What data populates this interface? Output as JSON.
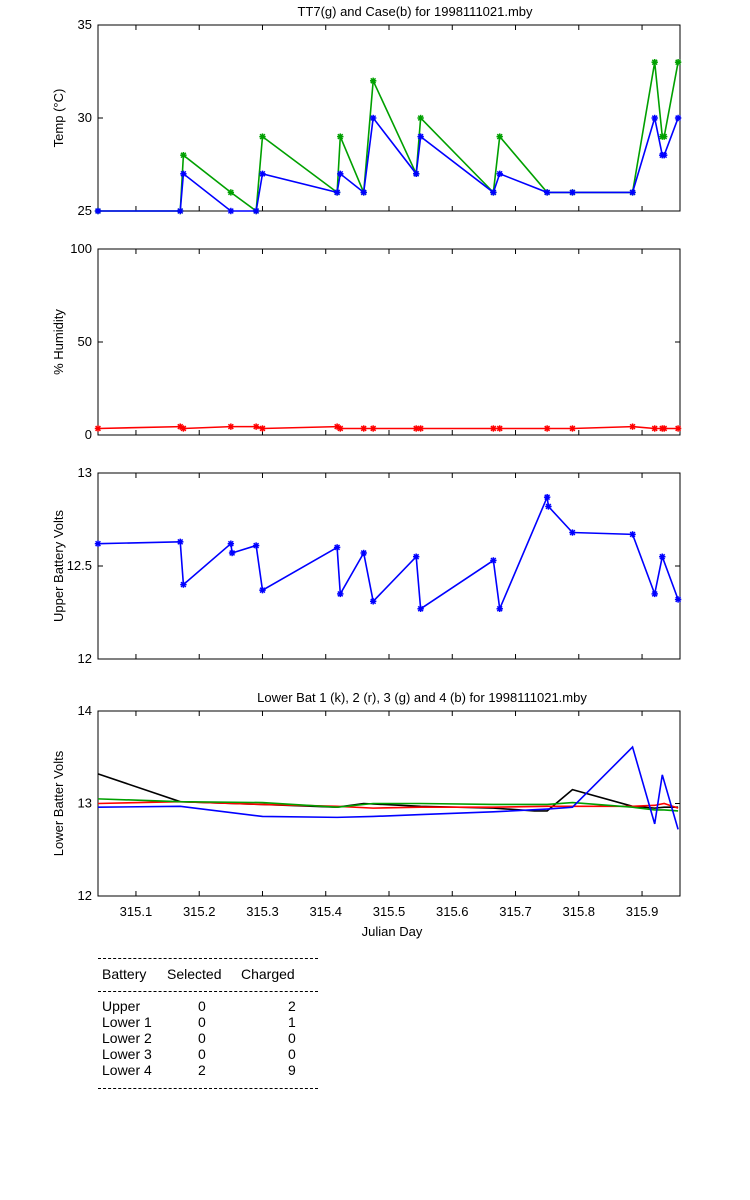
{
  "x_axis": {
    "label": "Julian Day",
    "ticks": [
      "315.1",
      "315.2",
      "315.3",
      "315.4",
      "315.5",
      "315.6",
      "315.7",
      "315.8",
      "315.9"
    ]
  },
  "chart_data": [
    {
      "type": "line",
      "title": "TT7(g) and Case(b) for 1998111021.mby",
      "xlabel": "",
      "ylabel": "Temp (°C)",
      "xlim": [
        315.04,
        315.96
      ],
      "ylim": [
        25,
        35
      ],
      "yticks": [
        "25",
        "30",
        "35"
      ],
      "grid": false,
      "series": [
        {
          "name": "TT7",
          "color": "#00a000",
          "marker": "*",
          "x": [
            315.04,
            315.17,
            315.175,
            315.25,
            315.29,
            315.3,
            315.418,
            315.423,
            315.46,
            315.475,
            315.543,
            315.55,
            315.665,
            315.675,
            315.75,
            315.79,
            315.885,
            315.92,
            315.932,
            315.935,
            315.957
          ],
          "y": [
            25,
            25,
            28,
            26,
            25,
            29,
            26,
            29,
            26,
            32,
            27,
            30,
            26,
            29,
            26,
            26,
            26,
            33,
            29,
            29,
            33
          ]
        },
        {
          "name": "Case",
          "color": "#0000ff",
          "marker": "*",
          "x": [
            315.04,
            315.17,
            315.175,
            315.25,
            315.29,
            315.3,
            315.418,
            315.423,
            315.46,
            315.475,
            315.543,
            315.55,
            315.665,
            315.675,
            315.75,
            315.79,
            315.885,
            315.92,
            315.932,
            315.935,
            315.957
          ],
          "y": [
            25,
            25,
            27,
            25,
            25,
            27,
            26,
            27,
            26,
            30,
            27,
            29,
            26,
            27,
            26,
            26,
            26,
            30,
            28,
            28,
            30
          ]
        }
      ]
    },
    {
      "type": "line",
      "title": "",
      "xlabel": "",
      "ylabel": "% Humidity",
      "xlim": [
        315.04,
        315.96
      ],
      "ylim": [
        0,
        100
      ],
      "yticks": [
        "0",
        "50",
        "100"
      ],
      "grid": false,
      "series": [
        {
          "name": "",
          "color": "#ff0000",
          "marker": "*",
          "x": [
            315.04,
            315.17,
            315.175,
            315.25,
            315.29,
            315.3,
            315.418,
            315.423,
            315.46,
            315.475,
            315.543,
            315.55,
            315.665,
            315.675,
            315.75,
            315.79,
            315.885,
            315.92,
            315.932,
            315.935,
            315.957
          ],
          "y": [
            3.5,
            4.5,
            3.5,
            4.5,
            4.5,
            3.5,
            4.5,
            3.5,
            3.5,
            3.5,
            3.5,
            3.5,
            3.5,
            3.5,
            3.5,
            3.5,
            4.5,
            3.5,
            3.5,
            3.5,
            3.5
          ]
        }
      ]
    },
    {
      "type": "line",
      "title": "",
      "xlabel": "",
      "ylabel": "Upper Battery Volts",
      "xlim": [
        315.04,
        315.96
      ],
      "ylim": [
        12,
        13
      ],
      "yticks": [
        "12",
        "12.5",
        "13"
      ],
      "grid": false,
      "series": [
        {
          "name": "",
          "color": "#0000ff",
          "marker": "*",
          "x": [
            315.04,
            315.17,
            315.175,
            315.25,
            315.252,
            315.29,
            315.3,
            315.418,
            315.423,
            315.46,
            315.475,
            315.543,
            315.55,
            315.665,
            315.675,
            315.75,
            315.752,
            315.79,
            315.885,
            315.92,
            315.932,
            315.957
          ],
          "y": [
            12.62,
            12.63,
            12.4,
            12.62,
            12.57,
            12.61,
            12.37,
            12.6,
            12.35,
            12.57,
            12.31,
            12.55,
            12.27,
            12.53,
            12.27,
            12.87,
            12.82,
            12.68,
            12.67,
            12.35,
            12.55,
            12.32
          ]
        }
      ]
    },
    {
      "type": "line",
      "title": "Lower Bat 1 (k), 2 (r), 3 (g) and 4 (b) for 1998111021.mby",
      "xlabel": "Julian Day",
      "ylabel": "Lower Batter Volts",
      "xlim": [
        315.04,
        315.96
      ],
      "ylim": [
        12,
        14
      ],
      "yticks": [
        "12",
        "13",
        "14"
      ],
      "grid": false,
      "series": [
        {
          "name": "1",
          "color": "#000000",
          "x": [
            315.04,
            315.17,
            315.3,
            315.418,
            315.46,
            315.55,
            315.665,
            315.73,
            315.75,
            315.79,
            315.885,
            315.92,
            315.935,
            315.957
          ],
          "y": [
            13.32,
            13.02,
            12.99,
            12.96,
            13.0,
            12.97,
            12.95,
            12.92,
            12.92,
            13.15,
            12.97,
            12.95,
            12.96,
            12.96
          ]
        },
        {
          "name": "2",
          "color": "#ff0000",
          "x": [
            315.04,
            315.17,
            315.3,
            315.418,
            315.475,
            315.55,
            315.665,
            315.75,
            315.79,
            315.885,
            315.92,
            315.935,
            315.957
          ],
          "y": [
            13.0,
            13.02,
            12.99,
            12.97,
            12.95,
            12.96,
            12.96,
            12.97,
            12.97,
            12.97,
            12.98,
            13.0,
            12.95
          ]
        },
        {
          "name": "3",
          "color": "#00a000",
          "x": [
            315.04,
            315.17,
            315.3,
            315.418,
            315.475,
            315.55,
            315.665,
            315.75,
            315.79,
            315.885,
            315.92,
            315.935,
            315.957
          ],
          "y": [
            13.05,
            13.02,
            13.01,
            12.96,
            13.0,
            13.0,
            12.99,
            12.99,
            13.01,
            12.96,
            12.93,
            12.93,
            12.92
          ]
        },
        {
          "name": "4",
          "color": "#0000ff",
          "x": [
            315.04,
            315.17,
            315.3,
            315.418,
            315.475,
            315.55,
            315.665,
            315.75,
            315.79,
            315.885,
            315.92,
            315.932,
            315.957
          ],
          "y": [
            12.96,
            12.97,
            12.86,
            12.85,
            12.86,
            12.88,
            12.91,
            12.94,
            12.96,
            13.61,
            12.78,
            13.31,
            12.72
          ]
        }
      ]
    }
  ],
  "table": {
    "headers": [
      "Battery",
      "Selected",
      "Charged"
    ],
    "rows": [
      [
        "Upper",
        "0",
        "2"
      ],
      [
        "Lower 1",
        "0",
        "1"
      ],
      [
        "Lower 2",
        "0",
        "0"
      ],
      [
        "Lower 3",
        "0",
        "0"
      ],
      [
        "Lower 4",
        "2",
        "9"
      ]
    ]
  }
}
